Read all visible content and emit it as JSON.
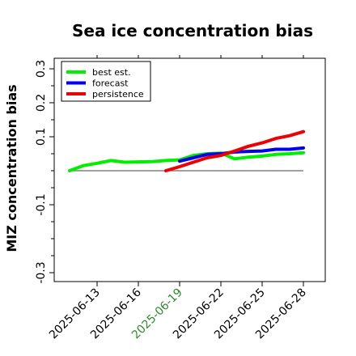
{
  "chart_data": {
    "type": "line",
    "title": "Sea ice concentration bias",
    "xlabel": "",
    "ylabel": "MIZ concentration bias",
    "x_ticks": [
      "2025-06-13",
      "2025-06-16",
      "2025-06-19",
      "2025-06-22",
      "2025-06-25",
      "2025-06-28"
    ],
    "highlighted_tick": "2025-06-19",
    "highlight_color": "#2e8b2e",
    "y_ticks": [
      {
        "value": 0.3,
        "label": "0.3"
      },
      {
        "value": 0.2,
        "label": "0.2"
      },
      {
        "value": 0.1,
        "label": "0.1"
      },
      {
        "value": -0.1,
        "label": "-0.1"
      },
      {
        "value": -0.3,
        "label": "-0.3"
      }
    ],
    "ylim": [
      -0.31,
      0.33
    ],
    "zero_line": true,
    "grid": false,
    "legend_position": "top-left",
    "series": [
      {
        "name": "best est.",
        "color": "#00ee00",
        "x": [
          "2025-06-11",
          "2025-06-12",
          "2025-06-13",
          "2025-06-14",
          "2025-06-15",
          "2025-06-16",
          "2025-06-17",
          "2025-06-18",
          "2025-06-19",
          "2025-06-20",
          "2025-06-21",
          "2025-06-22",
          "2025-06-23",
          "2025-06-24",
          "2025-06-25",
          "2025-06-26",
          "2025-06-27",
          "2025-06-28"
        ],
        "values": [
          0.0,
          0.015,
          0.022,
          0.03,
          0.025,
          0.026,
          0.027,
          0.03,
          0.032,
          0.045,
          0.05,
          0.052,
          0.035,
          0.04,
          0.043,
          0.048,
          0.05,
          0.053
        ]
      },
      {
        "name": "forecast",
        "color": "#0000ee",
        "x": [
          "2025-06-19",
          "2025-06-20",
          "2025-06-21",
          "2025-06-22",
          "2025-06-23",
          "2025-06-24",
          "2025-06-25",
          "2025-06-26",
          "2025-06-27",
          "2025-06-28"
        ],
        "values": [
          0.028,
          0.038,
          0.048,
          0.05,
          0.055,
          0.057,
          0.058,
          0.063,
          0.063,
          0.067
        ]
      },
      {
        "name": "persistence",
        "color": "#ee0000",
        "x": [
          "2025-06-18",
          "2025-06-19",
          "2025-06-20",
          "2025-06-21",
          "2025-06-22",
          "2025-06-23",
          "2025-06-24",
          "2025-06-25",
          "2025-06-26",
          "2025-06-27",
          "2025-06-28"
        ],
        "values": [
          0.0,
          0.012,
          0.025,
          0.038,
          0.045,
          0.058,
          0.072,
          0.082,
          0.095,
          0.103,
          0.115
        ]
      }
    ]
  }
}
